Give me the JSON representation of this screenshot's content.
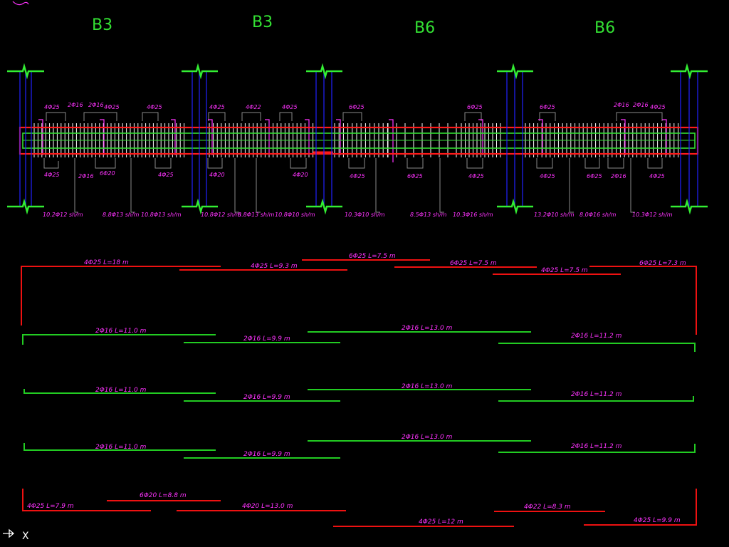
{
  "colors": {
    "background": "#000000",
    "beam_outline": "#ff1a1a",
    "beam_core": "#33dd33",
    "stirrup": "#ffffff",
    "support_column": "#2222ff",
    "support_line": "#33ee33",
    "dimension": "#909090",
    "annotation": "#ff33ff",
    "axis_label": "#33e033",
    "red_bar": "#ee1111",
    "green_bar": "#22cc22"
  },
  "axis_labels": [
    "B3",
    "B3",
    "B6",
    "B6"
  ],
  "top_bar_labels": [
    "4Φ25",
    "2Φ16",
    "2Φ16",
    "4Φ25",
    "4Φ25",
    "4Φ25",
    "4Φ22",
    "4Φ25",
    "6Φ25",
    "6Φ25",
    "6Φ25",
    "2Φ16",
    "2Φ16",
    "4Φ25"
  ],
  "bottom_bar_labels": [
    "4Φ25",
    "2Φ16",
    "6Φ20",
    "4Φ25",
    "4Φ20",
    "4Φ20",
    "4Φ25",
    "6Φ25",
    "4Φ25",
    "4Φ25",
    "6Φ25",
    "2Φ16",
    "4Φ25"
  ],
  "stirrup_labels": [
    "10.2Φ12 sh/m",
    "8.8Φ13 sh/m",
    "10.8Φ13 sh/m",
    "10.8Φ12 sh/m",
    "8.8Φ13 sh/m",
    "10.8Φ10 sh/m",
    "10.3Φ10 sh/m",
    "8.5Φ13 sh/m",
    "10.3Φ16 sh/m",
    "13.2Φ10 sh/m",
    "8.0Φ16 sh/m",
    "10.3Φ12 sh/m"
  ],
  "schedule": {
    "top_reinforcement": [
      {
        "label": "4Φ25 L=18 m"
      },
      {
        "label": "4Φ25 L=9.3 m"
      },
      {
        "label": "6Φ25 L=7.5 m"
      },
      {
        "label": "6Φ25 L=7.5 m"
      },
      {
        "label": "4Φ25 L=7.5 m"
      },
      {
        "label": "6Φ25 L=7.3 m"
      }
    ],
    "side_row_1": [
      {
        "label": "2Φ16 L=11.0 m"
      },
      {
        "label": "2Φ16 L=9.9 m"
      },
      {
        "label": "2Φ16 L=13.0 m"
      },
      {
        "label": "2Φ16 L=11.2 m"
      }
    ],
    "side_row_2": [
      {
        "label": "2Φ16 L=11.0 m"
      },
      {
        "label": "2Φ16 L=9.9 m"
      },
      {
        "label": "2Φ16 L=13.0 m"
      },
      {
        "label": "2Φ16 L=11.2 m"
      }
    ],
    "side_row_3": [
      {
        "label": "2Φ16 L=11.0 m"
      },
      {
        "label": "2Φ16 L=9.9 m"
      },
      {
        "label": "2Φ16 L=13.0 m"
      },
      {
        "label": "2Φ16 L=11.2 m"
      }
    ],
    "bottom_reinforcement": [
      {
        "label": "6Φ20 L=8.8 m"
      },
      {
        "label": "4Φ25 L=7.9 m"
      },
      {
        "label": "4Φ20 L=13.0 m"
      },
      {
        "label": "4Φ25 L=12 m"
      },
      {
        "label": "4Φ22 L=8.3 m"
      },
      {
        "label": "4Φ25 L=9.9 m"
      }
    ]
  },
  "ucs_label": "X"
}
